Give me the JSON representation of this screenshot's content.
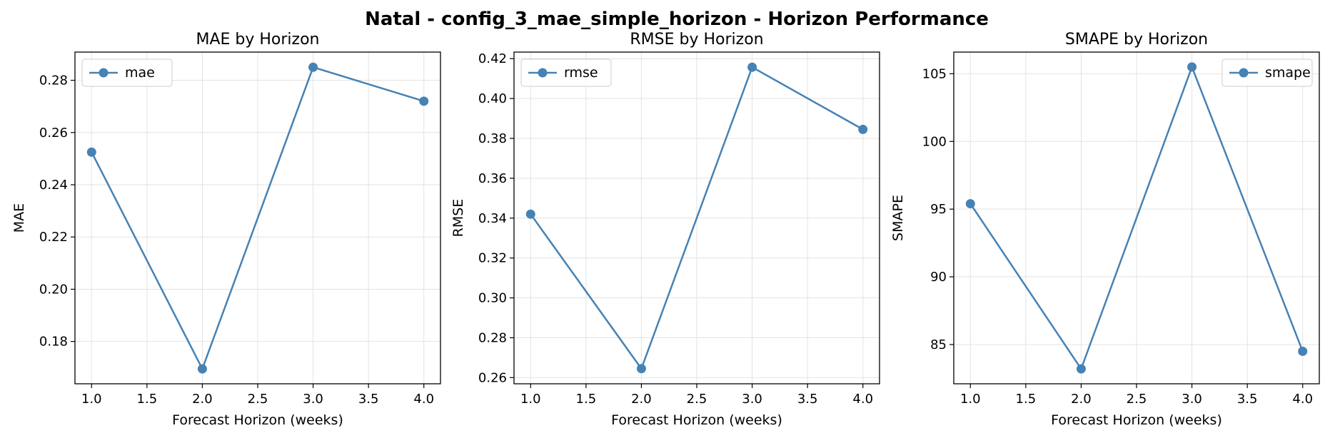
{
  "figure": {
    "title": "Natal - config_3_mae_simple_horizon - Horizon Performance",
    "line_color": "#4682b4"
  },
  "chart_data": [
    {
      "type": "line",
      "title": "MAE by Horizon",
      "xlabel": "Forecast Horizon (weeks)",
      "ylabel": "MAE",
      "x": [
        1.0,
        2.0,
        3.0,
        4.0
      ],
      "series": [
        {
          "name": "mae",
          "values": [
            0.2525,
            0.1695,
            0.285,
            0.272
          ]
        }
      ],
      "xlim": [
        0.85,
        4.15
      ],
      "ylim": [
        0.1638,
        0.2908
      ],
      "xticks": [
        1.0,
        1.5,
        2.0,
        2.5,
        3.0,
        3.5,
        4.0
      ],
      "xtick_labels": [
        "1.0",
        "1.5",
        "2.0",
        "2.5",
        "3.0",
        "3.5",
        "4.0"
      ],
      "yticks": [
        0.18,
        0.2,
        0.22,
        0.24,
        0.26,
        0.28
      ],
      "ytick_labels": [
        "0.18",
        "0.20",
        "0.22",
        "0.24",
        "0.26",
        "0.28"
      ],
      "grid": true,
      "legend": "upper-left"
    },
    {
      "type": "line",
      "title": "RMSE by Horizon",
      "xlabel": "Forecast Horizon (weeks)",
      "ylabel": "RMSE",
      "x": [
        1.0,
        2.0,
        3.0,
        4.0
      ],
      "series": [
        {
          "name": "rmse",
          "values": [
            0.342,
            0.2645,
            0.4157,
            0.3845
          ]
        }
      ],
      "xlim": [
        0.85,
        4.15
      ],
      "ylim": [
        0.2569,
        0.4233
      ],
      "xticks": [
        1.0,
        1.5,
        2.0,
        2.5,
        3.0,
        3.5,
        4.0
      ],
      "xtick_labels": [
        "1.0",
        "1.5",
        "2.0",
        "2.5",
        "3.0",
        "3.5",
        "4.0"
      ],
      "yticks": [
        0.26,
        0.28,
        0.3,
        0.32,
        0.34,
        0.36,
        0.38,
        0.4,
        0.42
      ],
      "ytick_labels": [
        "0.26",
        "0.28",
        "0.30",
        "0.32",
        "0.34",
        "0.36",
        "0.38",
        "0.40",
        "0.42"
      ],
      "grid": true,
      "legend": "upper-left"
    },
    {
      "type": "line",
      "title": "SMAPE by Horizon",
      "xlabel": "Forecast Horizon (weeks)",
      "ylabel": "SMAPE",
      "x": [
        1.0,
        2.0,
        3.0,
        4.0
      ],
      "series": [
        {
          "name": "smape",
          "values": [
            95.4,
            83.2,
            105.5,
            84.5
          ]
        }
      ],
      "xlim": [
        0.85,
        4.15
      ],
      "ylim": [
        82.1,
        106.6
      ],
      "xticks": [
        1.0,
        1.5,
        2.0,
        2.5,
        3.0,
        3.5,
        4.0
      ],
      "xtick_labels": [
        "1.0",
        "1.5",
        "2.0",
        "2.5",
        "3.0",
        "3.5",
        "4.0"
      ],
      "yticks": [
        85,
        90,
        95,
        100,
        105
      ],
      "ytick_labels": [
        "85",
        "90",
        "95",
        "100",
        "105"
      ],
      "grid": true,
      "legend": "upper-right"
    }
  ]
}
